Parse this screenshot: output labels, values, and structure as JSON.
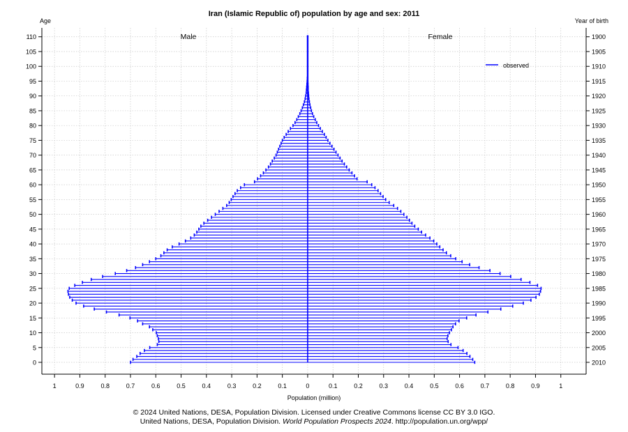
{
  "chart_data": {
    "type": "population-pyramid",
    "title": "Iran (Islamic Republic of) population by age and sex: 2011",
    "y_left_label": "Age",
    "y_right_label": "Year of birth",
    "xlabel": "Population (million)",
    "left_group": "Male",
    "right_group": "Female",
    "legend": [
      "observed"
    ],
    "legend_position": "top-right",
    "grid": true,
    "series_color": "#0000ff",
    "xlim": [
      -1.05,
      1.1
    ],
    "ylim": [
      -4,
      113
    ],
    "x_ticks": [
      -1,
      -0.9,
      -0.8,
      -0.7,
      -0.6,
      -0.5,
      -0.4,
      -0.3,
      -0.2,
      -0.1,
      0,
      0.1,
      0.2,
      0.3,
      0.4,
      0.5,
      0.6,
      0.7,
      0.8,
      0.9,
      1
    ],
    "x_tick_labels": [
      "1",
      "0.9",
      "0.8",
      "0.7",
      "0.6",
      "0.5",
      "0.4",
      "0.3",
      "0.2",
      "0.1",
      "0",
      "0.1",
      "0.2",
      "0.3",
      "0.4",
      "0.5",
      "0.6",
      "0.7",
      "0.8",
      "0.9",
      "1"
    ],
    "age_ticks": [
      0,
      5,
      10,
      15,
      20,
      25,
      30,
      35,
      40,
      45,
      50,
      55,
      60,
      65,
      70,
      75,
      80,
      85,
      90,
      95,
      100,
      105,
      110
    ],
    "birth_year_ticks": [
      "2010",
      "2005",
      "2000",
      "1995",
      "1990",
      "1985",
      "1980",
      "1975",
      "1970",
      "1965",
      "1960",
      "1955",
      "1950",
      "1945",
      "1940",
      "1935",
      "1930",
      "1925",
      "1920",
      "1915",
      "1910",
      "1905",
      "1900"
    ],
    "male": [
      0.7,
      0.69,
      0.675,
      0.662,
      0.645,
      0.624,
      0.594,
      0.588,
      0.59,
      0.594,
      0.598,
      0.612,
      0.625,
      0.652,
      0.672,
      0.702,
      0.745,
      0.795,
      0.843,
      0.885,
      0.915,
      0.93,
      0.94,
      0.945,
      0.947,
      0.942,
      0.92,
      0.89,
      0.855,
      0.81,
      0.76,
      0.715,
      0.68,
      0.652,
      0.625,
      0.6,
      0.58,
      0.568,
      0.555,
      0.535,
      0.508,
      0.483,
      0.462,
      0.448,
      0.438,
      0.43,
      0.422,
      0.41,
      0.395,
      0.38,
      0.365,
      0.35,
      0.335,
      0.32,
      0.31,
      0.302,
      0.295,
      0.287,
      0.278,
      0.265,
      0.25,
      0.21,
      0.198,
      0.186,
      0.175,
      0.165,
      0.155,
      0.147,
      0.14,
      0.132,
      0.125,
      0.12,
      0.115,
      0.11,
      0.105,
      0.1,
      0.093,
      0.085,
      0.077,
      0.068,
      0.058,
      0.05,
      0.043,
      0.037,
      0.031,
      0.026,
      0.021,
      0.017,
      0.013,
      0.01,
      0.008,
      0.006,
      0.005,
      0.004,
      0.003,
      0.002,
      0.0015,
      0.001,
      0.001,
      0.001,
      0.001,
      0.001,
      0.001,
      0.001,
      0.001,
      0.001,
      0.001,
      0.001,
      0.001,
      0.001,
      0.001
    ],
    "female": [
      0.66,
      0.652,
      0.641,
      0.629,
      0.614,
      0.594,
      0.566,
      0.555,
      0.551,
      0.554,
      0.56,
      0.568,
      0.574,
      0.584,
      0.598,
      0.628,
      0.665,
      0.712,
      0.763,
      0.81,
      0.852,
      0.882,
      0.902,
      0.915,
      0.92,
      0.922,
      0.908,
      0.878,
      0.843,
      0.802,
      0.76,
      0.72,
      0.677,
      0.64,
      0.61,
      0.585,
      0.565,
      0.548,
      0.535,
      0.522,
      0.51,
      0.498,
      0.483,
      0.466,
      0.45,
      0.437,
      0.423,
      0.412,
      0.402,
      0.392,
      0.38,
      0.368,
      0.355,
      0.34,
      0.322,
      0.308,
      0.298,
      0.288,
      0.278,
      0.266,
      0.253,
      0.235,
      0.195,
      0.185,
      0.175,
      0.164,
      0.154,
      0.145,
      0.136,
      0.128,
      0.12,
      0.112,
      0.104,
      0.096,
      0.088,
      0.08,
      0.073,
      0.066,
      0.058,
      0.05,
      0.043,
      0.036,
      0.03,
      0.024,
      0.019,
      0.015,
      0.012,
      0.009,
      0.007,
      0.005,
      0.004,
      0.003,
      0.002,
      0.002,
      0.0015,
      0.001,
      0.001,
      0.001,
      0.001,
      0.001,
      0.001,
      0.001,
      0.001,
      0.001,
      0.001,
      0.001,
      0.001,
      0.001,
      0.001,
      0.001,
      0.001
    ]
  },
  "credits": {
    "line1": "© 2024 United Nations, DESA, Population Division. Licensed under Creative Commons license CC BY 3.0 IGO.",
    "line2_prefix": "United Nations, DESA, Population Division. ",
    "line2_italic": "World Population Prospects 2024",
    "line2_suffix": ". http://population.un.org/wpp/"
  }
}
